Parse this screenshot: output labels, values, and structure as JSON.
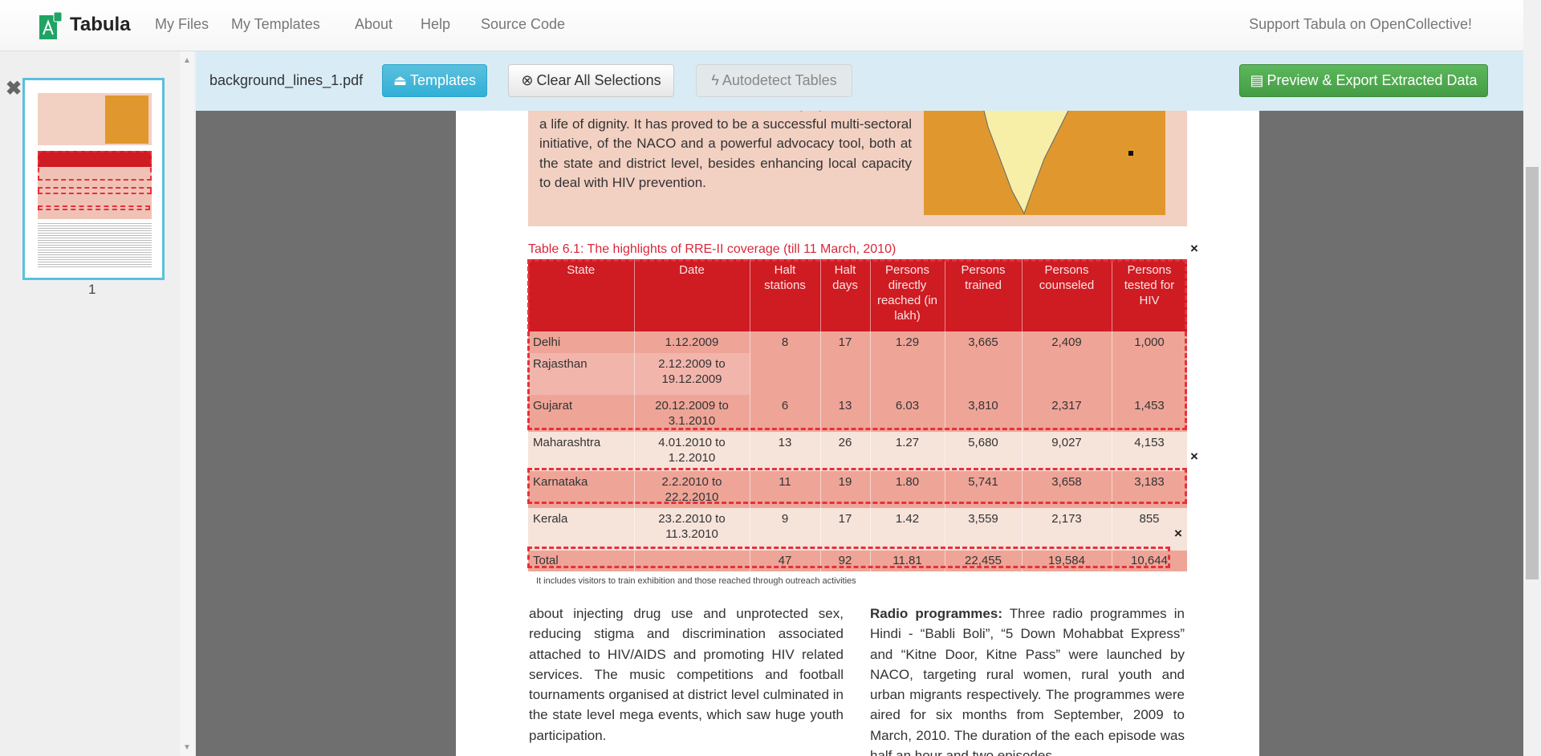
{
  "nav": {
    "brand": "Tabula",
    "items": [
      "My Files",
      "My Templates",
      "About",
      "Help",
      "Source Code"
    ],
    "support": "Support Tabula on OpenCollective!"
  },
  "sidebar": {
    "page_number": "1"
  },
  "toolbar": {
    "filename": "background_lines_1.pdf",
    "templates": "Templates",
    "clear": "Clear All Selections",
    "autodetect": "Autodetect Tables",
    "preview": "Preview & Export Extracted Data"
  },
  "colors": {
    "table_header": "#cf1b22",
    "selection": "#e8303a",
    "export_button": "#5cb85c",
    "templates_button": "#5bc0de"
  },
  "pdf": {
    "intro": "can access the services, without fear and prejudice, and live a life of dignity. It has proved to be a successful multi-sectoral initiative, of the NACO and a powerful advocacy tool, both at the state and district level, besides enhancing local capacity to deal with HIV prevention.",
    "caption": "Table 6.1: The highlights of RRE-II coverage (till 11 March, 2010)",
    "headers": [
      "State",
      "Date",
      "Halt stations",
      "Halt days",
      "Persons directly reached (in lakh)",
      "Persons trained",
      "Persons counseled",
      "Persons tested for HIV"
    ],
    "rows": [
      [
        "Delhi",
        "1.12.2009",
        "8",
        "17",
        "1.29",
        "3,665",
        "2,409",
        "1,000"
      ],
      [
        "Rajasthan",
        "2.12.2009 to 19.12.2009"
      ],
      [
        "Gujarat",
        "20.12.2009 to 3.1.2010",
        "6",
        "13",
        "6.03",
        "3,810",
        "2,317",
        "1,453"
      ],
      [
        "Maharashtra",
        "4.01.2010 to 1.2.2010",
        "13",
        "26",
        "1.27",
        "5,680",
        "9,027",
        "4,153"
      ],
      [
        "Karnataka",
        "2.2.2010 to 22.2.2010",
        "11",
        "19",
        "1.80",
        "5,741",
        "3,658",
        "3,183"
      ],
      [
        "Kerala",
        "23.2.2010 to 11.3.2010",
        "9",
        "17",
        "1.42",
        "3,559",
        "2,173",
        "855"
      ],
      [
        "Total",
        "",
        "47",
        "92",
        "11.81",
        "22,455",
        "19,584",
        "10,644"
      ]
    ],
    "footnote": "It includes visitors to train exhibition and those reached through outreach activities",
    "col_left": "about injecting drug use and unprotected sex, reducing stigma and discrimination associated attached to HIV/AIDS and promoting HIV related services. The music competitions and football tournaments organised at district level culminated in the state level mega events, which saw huge youth participation.",
    "col_right_bold": "Radio programmes:",
    "col_right": " Three radio programmes in Hindi - “Babli Boli”, “5 Down Mohabbat Express” and “Kitne Door, Kitne Pass” were launched by NACO, targeting rural women, rural youth and urban migrants respectively. The programmes were aired for six months from September, 2009 to March, 2010. The duration of the each episode was half an hour and two episodes",
    "close": "×"
  }
}
